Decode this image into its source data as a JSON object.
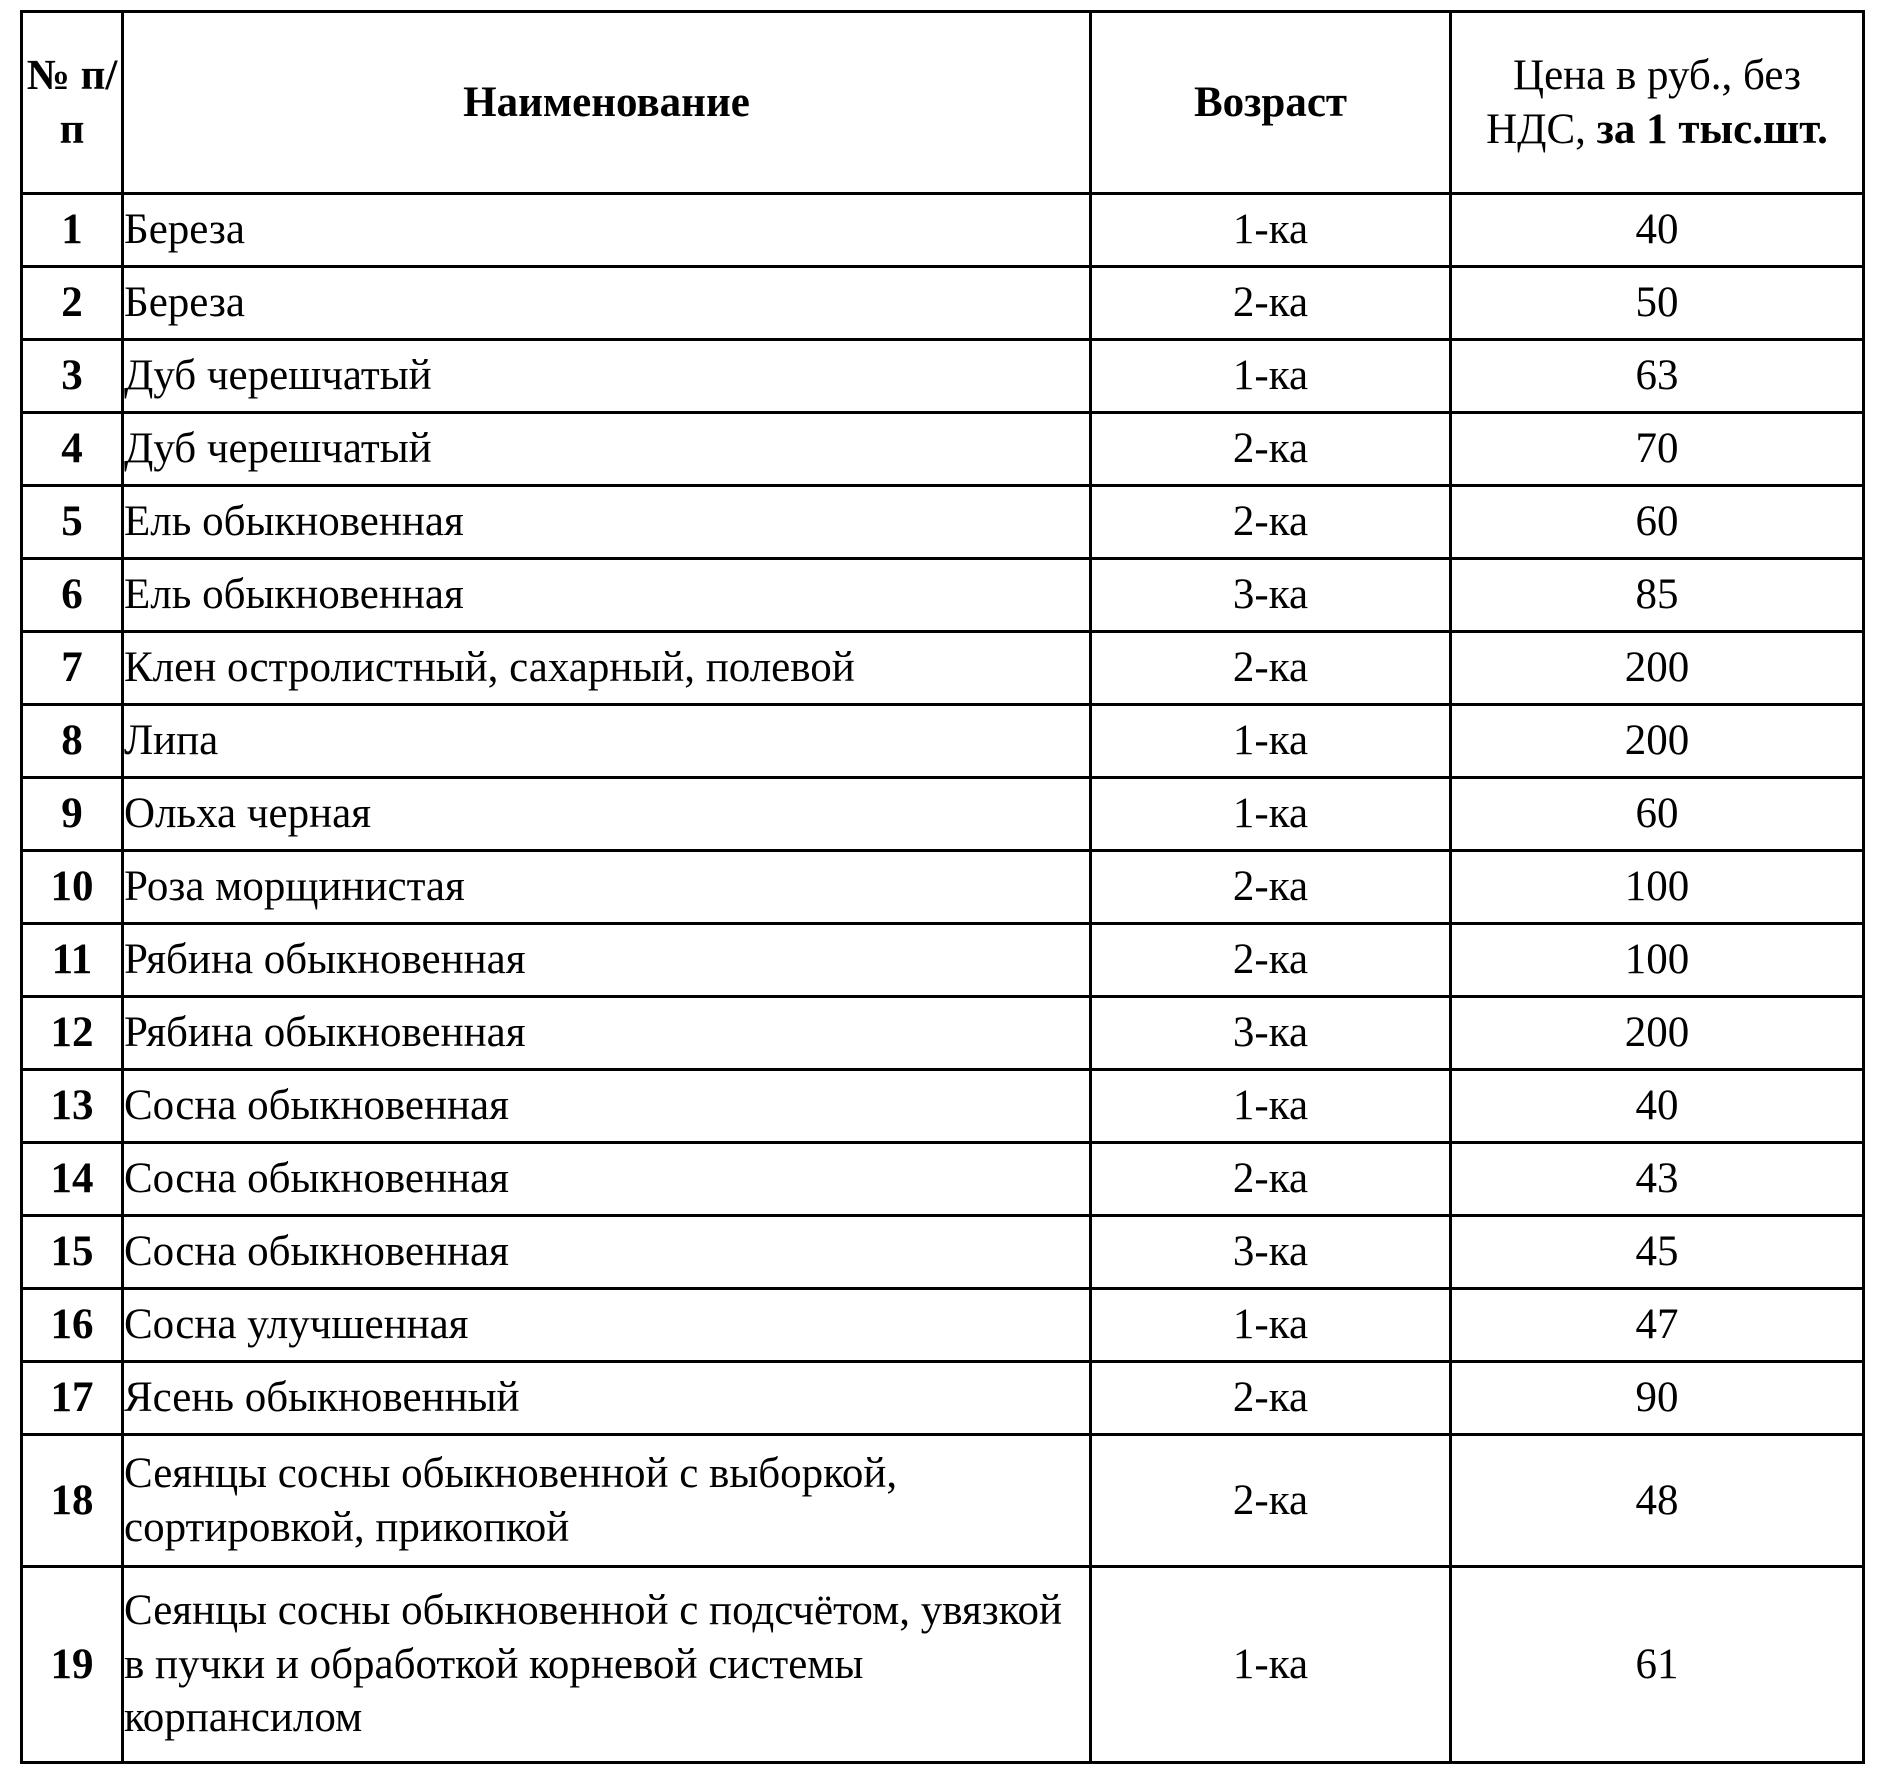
{
  "header": {
    "num": "№ п/п",
    "name": "Наименование",
    "age": "Возраст",
    "price_line1": "Цена в руб., без",
    "price_line2_normal": "НДС, ",
    "price_line2_bold": "за 1 тыс.шт."
  },
  "rows": [
    {
      "num": "1",
      "name": "Береза",
      "age": "1-ка",
      "price": "40"
    },
    {
      "num": "2",
      "name": "Береза",
      "age": "2-ка",
      "price": "50"
    },
    {
      "num": "3",
      "name": "Дуб черешчатый",
      "age": "1-ка",
      "price": "63"
    },
    {
      "num": "4",
      "name": "Дуб черешчатый",
      "age": "2-ка",
      "price": "70"
    },
    {
      "num": "5",
      "name": "Ель обыкновенная",
      "age": "2-ка",
      "price": "60"
    },
    {
      "num": "6",
      "name": "Ель обыкновенная",
      "age": "3-ка",
      "price": "85"
    },
    {
      "num": "7",
      "name": "Клен остролистный, сахарный, полевой",
      "age": "2-ка",
      "price": "200"
    },
    {
      "num": "8",
      "name": "Липа",
      "age": "1-ка",
      "price": "200"
    },
    {
      "num": "9",
      "name": "Ольха черная",
      "age": "1-ка",
      "price": "60"
    },
    {
      "num": "10",
      "name": "Роза морщинистая",
      "age": "2-ка",
      "price": "100"
    },
    {
      "num": "11",
      "name": "Рябина обыкновенная",
      "age": "2-ка",
      "price": "100"
    },
    {
      "num": "12",
      "name": "Рябина обыкновенная",
      "age": "3-ка",
      "price": "200"
    },
    {
      "num": "13",
      "name": "Сосна обыкновенная",
      "age": "1-ка",
      "price": "40"
    },
    {
      "num": "14",
      "name": "Сосна обыкновенная",
      "age": "2-ка",
      "price": "43"
    },
    {
      "num": "15",
      "name": "Сосна обыкновенная",
      "age": "3-ка",
      "price": "45"
    },
    {
      "num": "16",
      "name": "Сосна улучшенная",
      "age": "1-ка",
      "price": "47"
    },
    {
      "num": "17",
      "name": "Ясень обыкновенный",
      "age": "2-ка",
      "price": "90"
    },
    {
      "num": "18",
      "name": "Сеянцы сосны обыкновенной с выборкой, сортировкой, прикопкой",
      "age": "2-ка",
      "price": "48"
    },
    {
      "num": "19",
      "name": "Сеянцы сосны обыкновенной с подсчётом, увязкой в пучки и обработкой корневой системы корпансилом",
      "age": "1-ка",
      "price": "61"
    }
  ]
}
